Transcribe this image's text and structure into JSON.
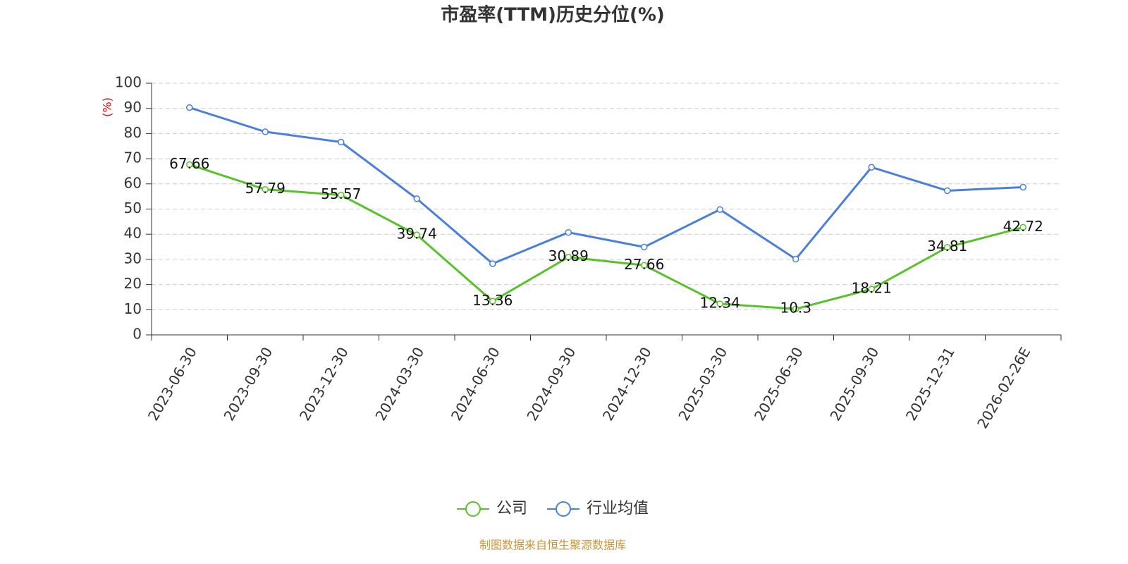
{
  "chart_data": {
    "type": "line",
    "title": "市盈率(TTM)历史分位(%)",
    "y_label": "(%)",
    "categories": [
      "2023-06-30",
      "2023-09-30",
      "2023-12-30",
      "2024-03-30",
      "2024-06-30",
      "2024-09-30",
      "2024-12-30",
      "2025-03-30",
      "2025-06-30",
      "2025-09-30",
      "2025-12-31",
      "2026-02-26E"
    ],
    "series": [
      {
        "name": "公司",
        "color": "#58c22a",
        "values": [
          67.66,
          57.79,
          55.57,
          39.74,
          13.36,
          30.89,
          27.66,
          12.34,
          10.3,
          18.21,
          34.81,
          42.72
        ],
        "labels": true
      },
      {
        "name": "行业均值",
        "color": "#4a7fdc",
        "values": [
          90.3,
          80.7,
          76.6,
          54.1,
          28.3,
          40.7,
          34.9,
          49.8,
          30.1,
          66.6,
          57.3,
          58.7
        ],
        "labels": false
      }
    ],
    "ylim": [
      0,
      100
    ],
    "yticks": [
      0,
      10,
      20,
      30,
      40,
      50,
      60,
      70,
      80,
      90,
      100
    ],
    "grid": true,
    "legend": "bottom",
    "source": "制图数据来自恒生聚源数据库"
  }
}
